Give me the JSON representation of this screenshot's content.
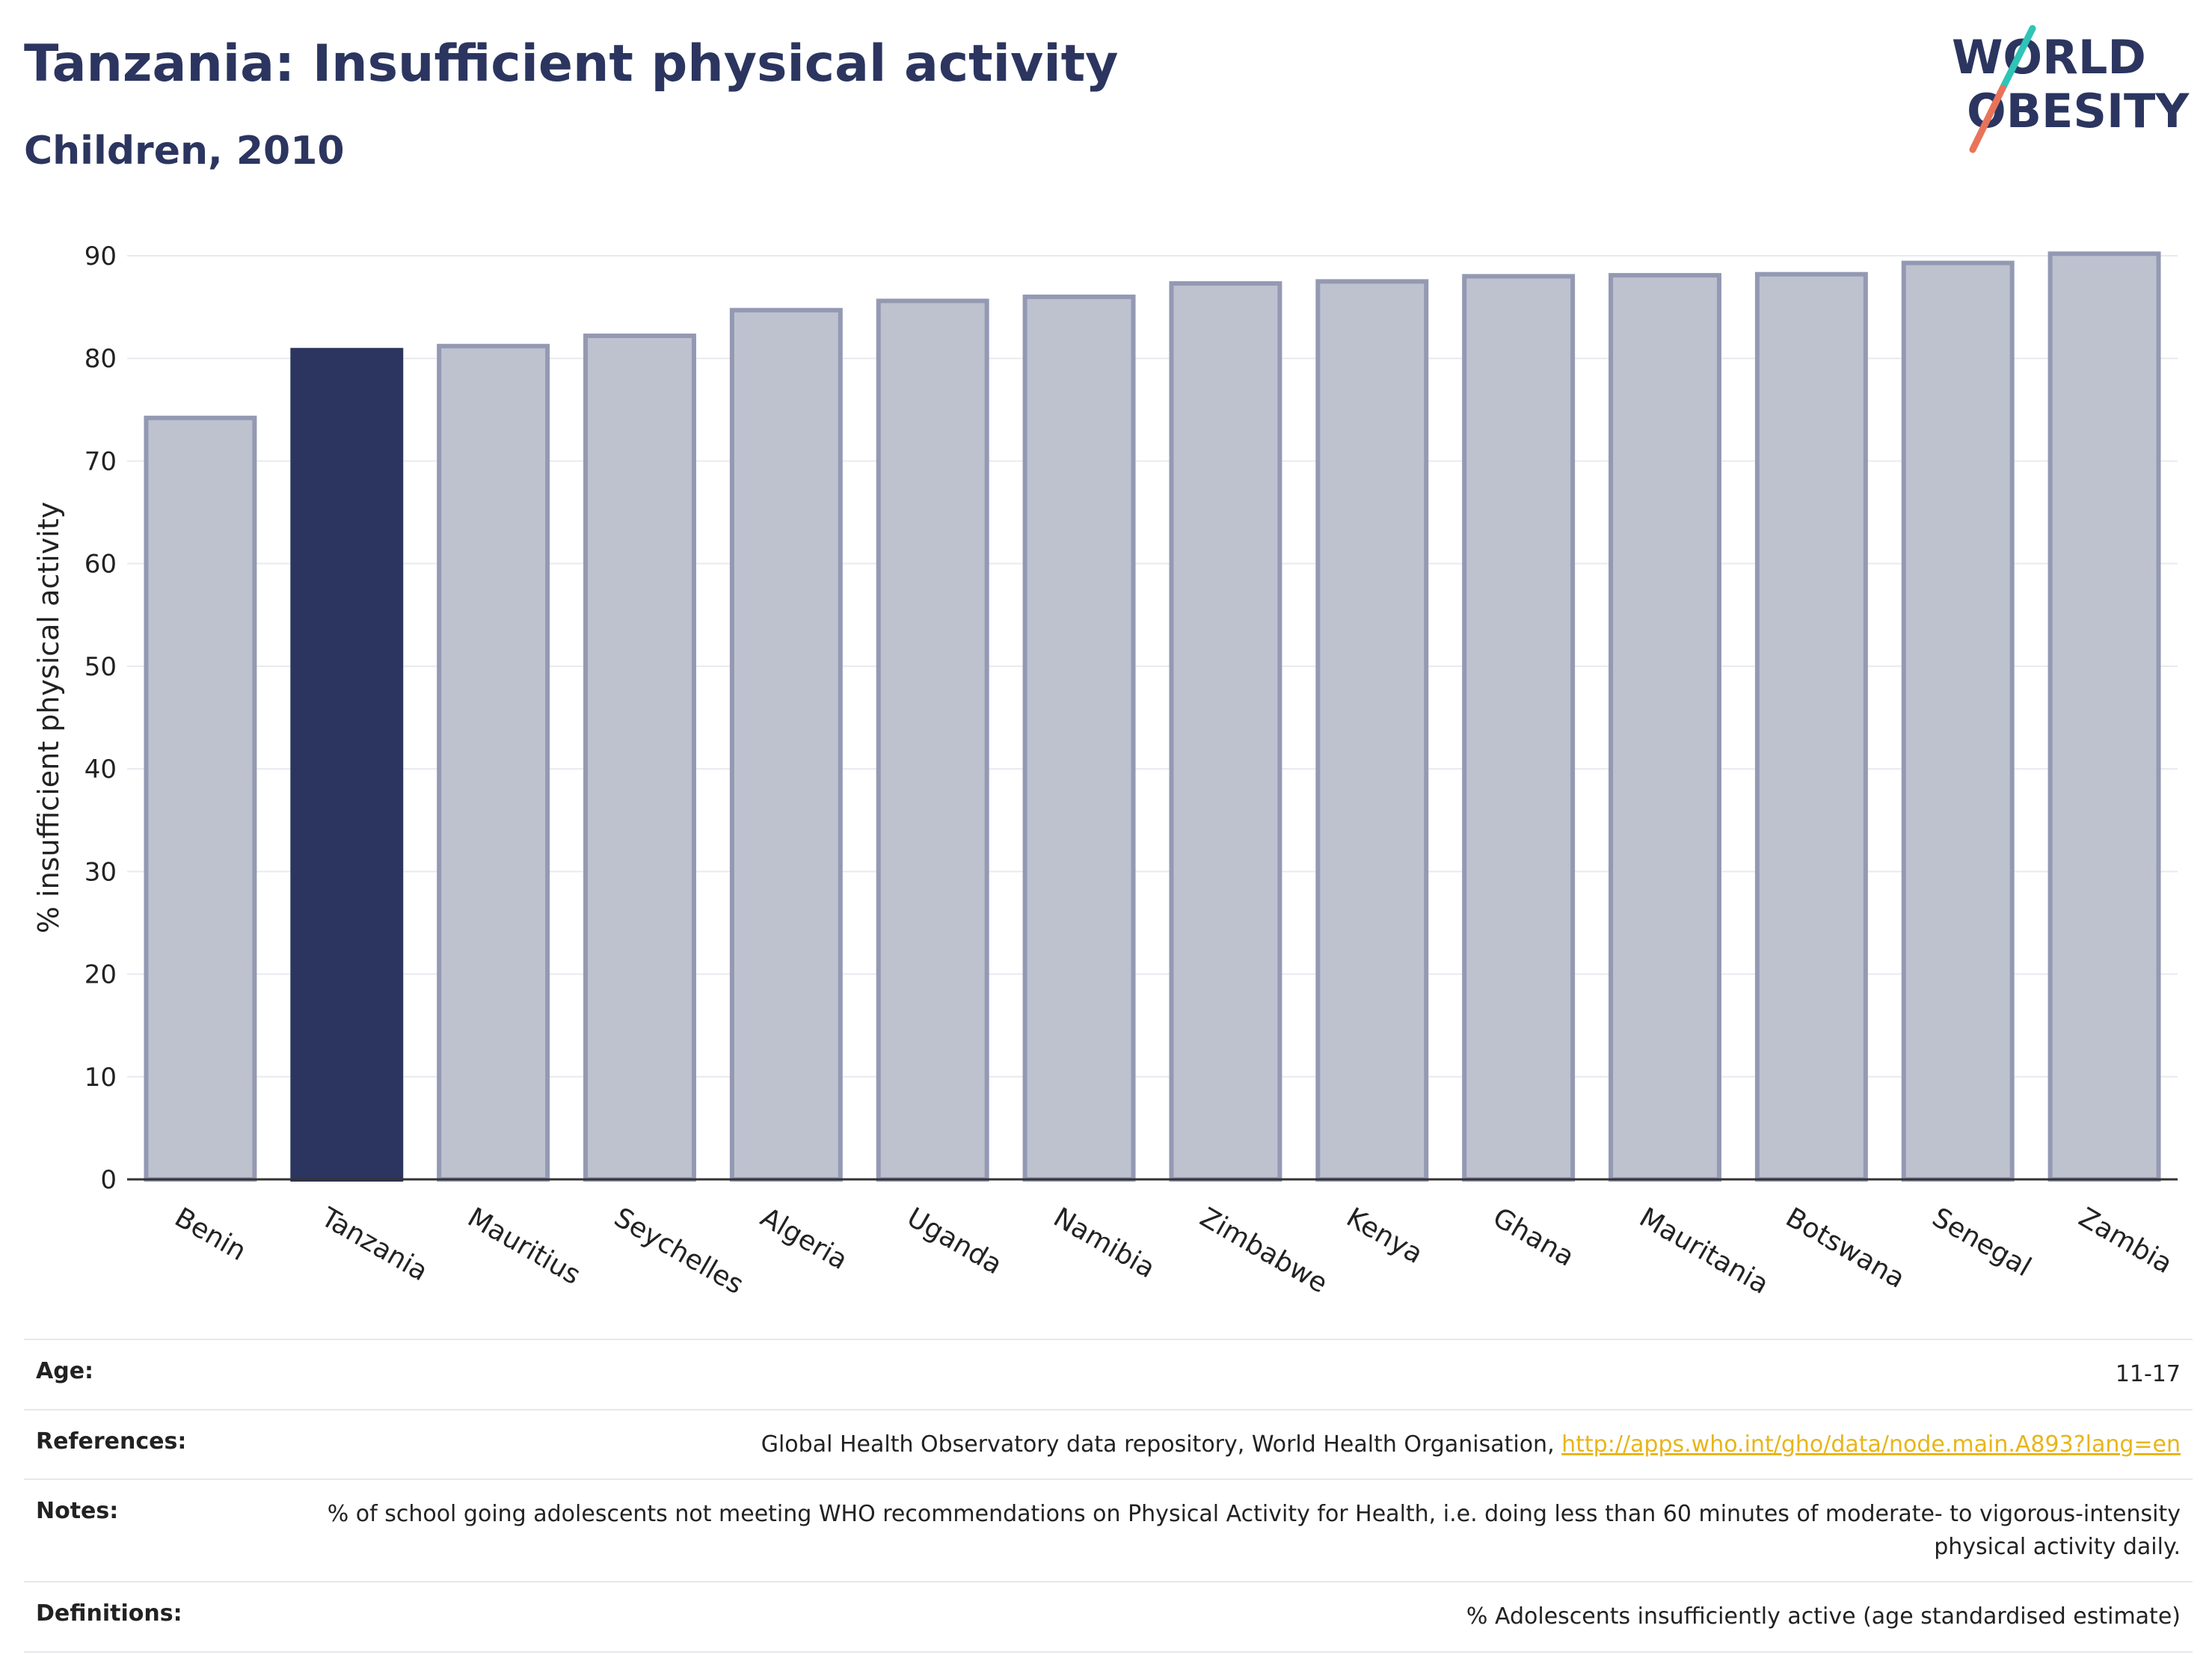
{
  "header": {
    "title": "Tanzania: Insufficient physical activity",
    "subtitle": "Children, 2010"
  },
  "logo": {
    "line1": "WORLD",
    "line2": "OBESITY",
    "accent_colors": [
      "#2ec4b6",
      "#e8735a"
    ]
  },
  "chart_data": {
    "type": "bar",
    "categories": [
      "Benin",
      "Tanzania",
      "Mauritius",
      "Seychelles",
      "Algeria",
      "Uganda",
      "Namibia",
      "Zimbabwe",
      "Kenya",
      "Ghana",
      "Mauritania",
      "Botswana",
      "Senegal",
      "Zambia"
    ],
    "values": [
      74.2,
      80.8,
      81.2,
      82.2,
      84.7,
      85.6,
      86.0,
      87.3,
      87.5,
      88.0,
      88.1,
      88.2,
      89.3,
      90.2
    ],
    "highlight": "Tanzania",
    "ylabel": "% insufficient physical activity",
    "xlabel": "",
    "ylim": [
      0,
      90
    ],
    "yticks": [
      0,
      10,
      20,
      30,
      40,
      50,
      60,
      70,
      80,
      90
    ],
    "grid": true,
    "colors": {
      "highlight": "#2b355f",
      "default_fill": "#bec2cf",
      "default_stroke": "#9499b3"
    }
  },
  "info": {
    "age_label": "Age:",
    "age_value": "11-17",
    "references_label": "References:",
    "references_text": "Global Health Observatory data repository, World Health Organisation, ",
    "references_link": "http://apps.who.int/gho/data/node.main.A893?lang=en",
    "notes_label": "Notes:",
    "notes_value": "% of school going adolescents not meeting WHO recommendations on Physical Activity for Health, i.e. doing less than 60 minutes of moderate- to vigorous-intensity physical activity daily.",
    "definitions_label": "Definitions:",
    "definitions_value": "% Adolescents insufficiently active (age standardised estimate)"
  }
}
